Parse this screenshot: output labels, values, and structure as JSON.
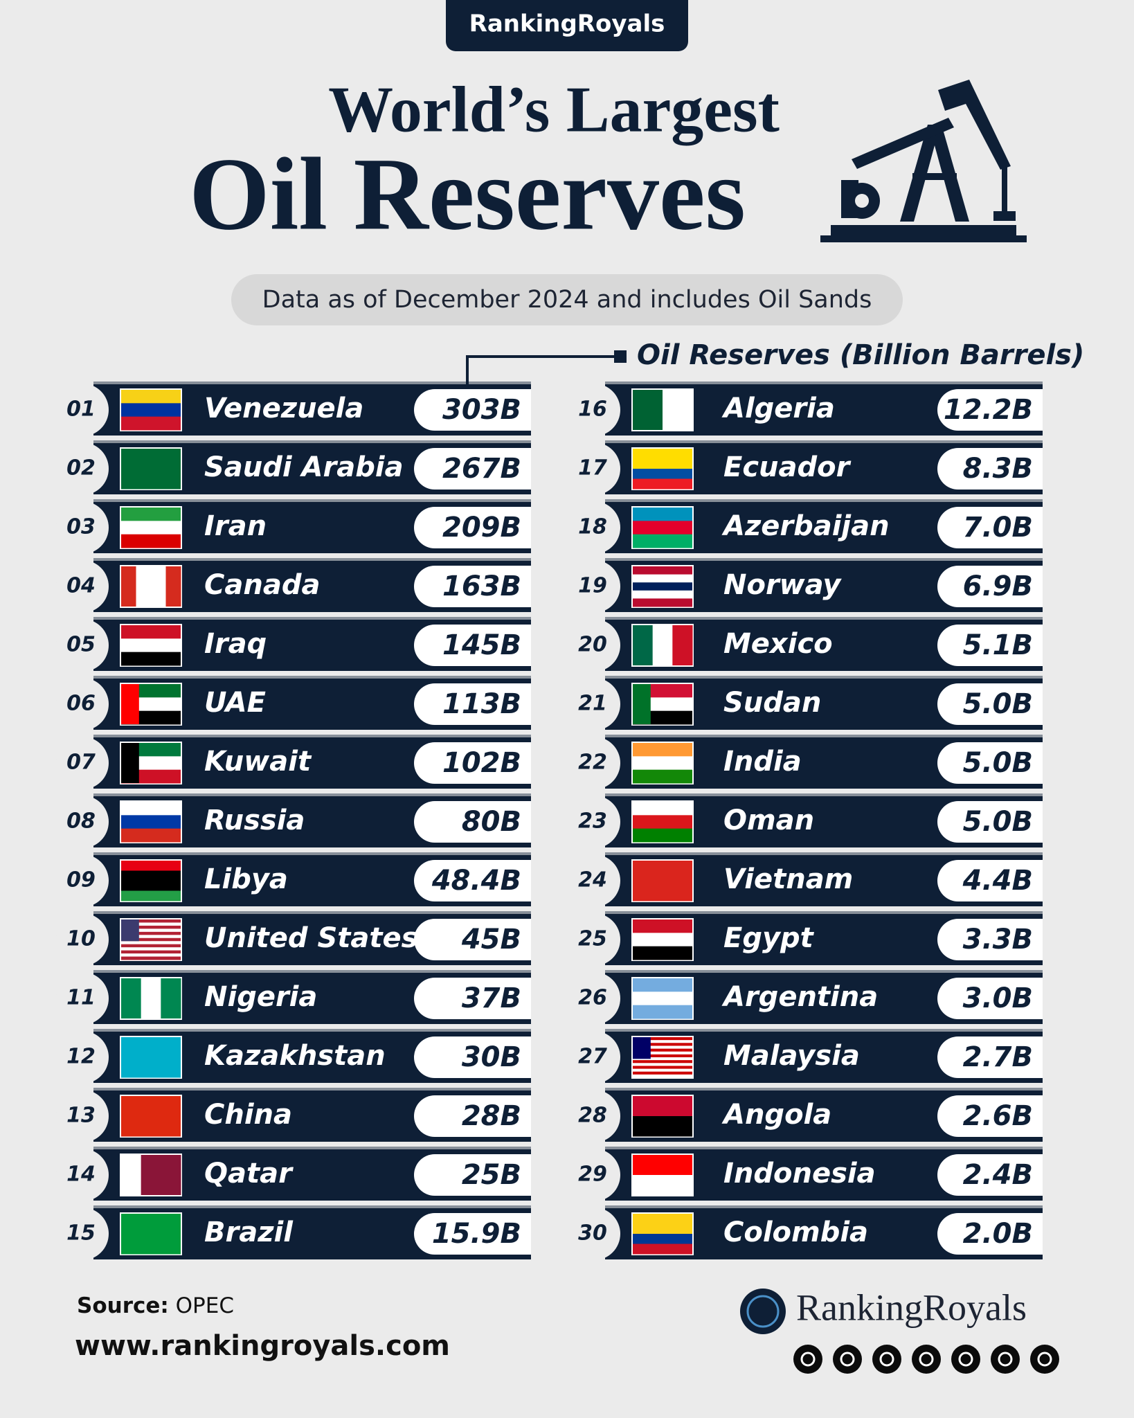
{
  "header": {
    "brand": "RankingRoyals"
  },
  "title": {
    "line1": "World’s Largest",
    "line2": "Oil Reserves"
  },
  "subtitle": "Data as of December 2024 and includes Oil Sands",
  "legend": "Oil Reserves (Billion Barrels)",
  "rows": [
    {
      "rank": "01",
      "country": "Venezuela",
      "value": "303B"
    },
    {
      "rank": "02",
      "country": "Saudi Arabia",
      "value": "267B"
    },
    {
      "rank": "03",
      "country": "Iran",
      "value": "209B"
    },
    {
      "rank": "04",
      "country": "Canada",
      "value": "163B"
    },
    {
      "rank": "05",
      "country": "Iraq",
      "value": "145B"
    },
    {
      "rank": "06",
      "country": "UAE",
      "value": "113B"
    },
    {
      "rank": "07",
      "country": "Kuwait",
      "value": "102B"
    },
    {
      "rank": "08",
      "country": "Russia",
      "value": "80B"
    },
    {
      "rank": "09",
      "country": "Libya",
      "value": "48.4B"
    },
    {
      "rank": "10",
      "country": "United States",
      "value": "45B"
    },
    {
      "rank": "11",
      "country": "Nigeria",
      "value": "37B"
    },
    {
      "rank": "12",
      "country": "Kazakhstan",
      "value": "30B"
    },
    {
      "rank": "13",
      "country": "China",
      "value": "28B"
    },
    {
      "rank": "14",
      "country": "Qatar",
      "value": "25B"
    },
    {
      "rank": "15",
      "country": "Brazil",
      "value": "15.9B"
    },
    {
      "rank": "16",
      "country": "Algeria",
      "value": "12.2B"
    },
    {
      "rank": "17",
      "country": "Ecuador",
      "value": "8.3B"
    },
    {
      "rank": "18",
      "country": "Azerbaijan",
      "value": "7.0B"
    },
    {
      "rank": "19",
      "country": "Norway",
      "value": "6.9B"
    },
    {
      "rank": "20",
      "country": "Mexico",
      "value": "5.1B"
    },
    {
      "rank": "21",
      "country": "Sudan",
      "value": "5.0B"
    },
    {
      "rank": "22",
      "country": "India",
      "value": "5.0B"
    },
    {
      "rank": "23",
      "country": "Oman",
      "value": "5.0B"
    },
    {
      "rank": "24",
      "country": "Vietnam",
      "value": "4.4B"
    },
    {
      "rank": "25",
      "country": "Egypt",
      "value": "3.3B"
    },
    {
      "rank": "26",
      "country": "Argentina",
      "value": "3.0B"
    },
    {
      "rank": "27",
      "country": "Malaysia",
      "value": "2.7B"
    },
    {
      "rank": "28",
      "country": "Angola",
      "value": "2.6B"
    },
    {
      "rank": "29",
      "country": "Indonesia",
      "value": "2.4B"
    },
    {
      "rank": "30",
      "country": "Colombia",
      "value": "2.0B"
    }
  ],
  "footer": {
    "source_label": "Source:",
    "source": "OPEC",
    "website": "www.rankingroyals.com",
    "brand": "RankingRoyals"
  }
}
